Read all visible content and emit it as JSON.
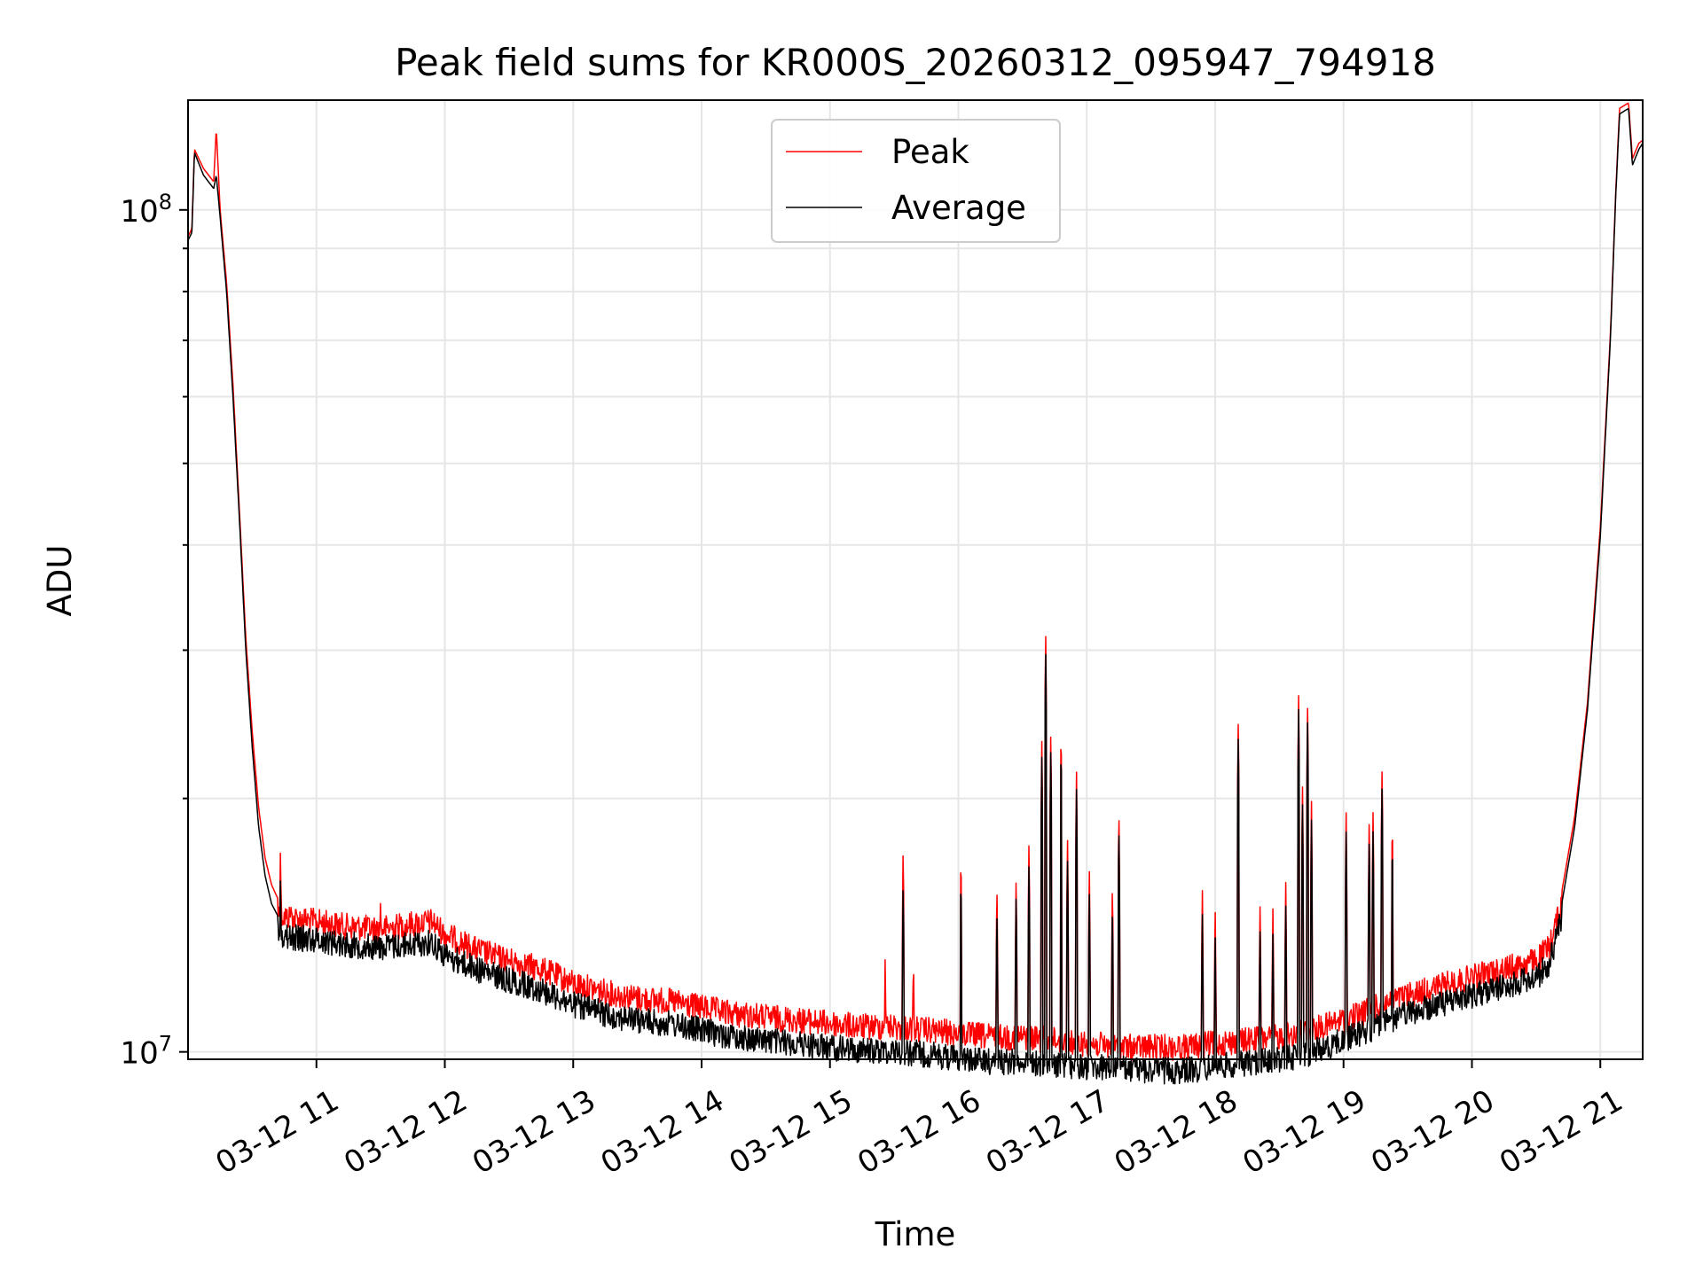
{
  "chart_data": {
    "type": "line",
    "title": "Peak field sums for KR000S_20260312_095947_794918",
    "xlabel": "Time",
    "ylabel": "ADU",
    "y_scale": "log",
    "ylim": [
      9800000,
      135000000
    ],
    "xlim_hours": [
      10.0,
      21.33
    ],
    "grid": "on (major and minor)",
    "legend_placement": "top-center",
    "x_ticks": [
      {
        "hour": 11,
        "label": "03-12 11"
      },
      {
        "hour": 12,
        "label": "03-12 12"
      },
      {
        "hour": 13,
        "label": "03-12 13"
      },
      {
        "hour": 14,
        "label": "03-12 14"
      },
      {
        "hour": 15,
        "label": "03-12 15"
      },
      {
        "hour": 16,
        "label": "03-12 16"
      },
      {
        "hour": 17,
        "label": "03-12 17"
      },
      {
        "hour": 18,
        "label": "03-12 18"
      },
      {
        "hour": 19,
        "label": "03-12 19"
      },
      {
        "hour": 20,
        "label": "03-12 20"
      },
      {
        "hour": 21,
        "label": "03-12 21"
      }
    ],
    "y_ticks": [
      {
        "value": 10000000,
        "base": "10",
        "exp": "7"
      },
      {
        "value": 100000000,
        "base": "10",
        "exp": "8"
      }
    ],
    "series": [
      {
        "name": "Peak",
        "color": "#ff0000",
        "points": [
          [
            10.0,
            93000000
          ],
          [
            10.03,
            95000000
          ],
          [
            10.05,
            118000000
          ],
          [
            10.12,
            112000000
          ],
          [
            10.2,
            108000000
          ],
          [
            10.22,
            125000000
          ],
          [
            10.25,
            100000000
          ],
          [
            10.3,
            82000000
          ],
          [
            10.35,
            62000000
          ],
          [
            10.4,
            44000000
          ],
          [
            10.45,
            31000000
          ],
          [
            10.5,
            24000000
          ],
          [
            10.55,
            19500000
          ],
          [
            10.6,
            17000000
          ],
          [
            10.65,
            15800000
          ],
          [
            10.7,
            15200000
          ],
          [
            10.75,
            15000000
          ],
          [
            11.0,
            14800000
          ],
          [
            11.25,
            14600000
          ],
          [
            11.5,
            14500000
          ],
          [
            11.75,
            14700000
          ],
          [
            11.9,
            14800000
          ],
          [
            12.0,
            14300000
          ],
          [
            12.25,
            13700000
          ],
          [
            12.5,
            13300000
          ],
          [
            12.75,
            13000000
          ],
          [
            13.0,
            12500000
          ],
          [
            13.25,
            12200000
          ],
          [
            13.5,
            12000000
          ],
          [
            13.75,
            11900000
          ],
          [
            14.0,
            11700000
          ],
          [
            14.25,
            11500000
          ],
          [
            14.5,
            11400000
          ],
          [
            14.75,
            11300000
          ],
          [
            15.0,
            11200000
          ],
          [
            15.25,
            11100000
          ],
          [
            15.5,
            11100000
          ],
          [
            16.0,
            10900000
          ],
          [
            16.25,
            10800000
          ],
          [
            16.5,
            10800000
          ],
          [
            16.75,
            10700000
          ],
          [
            17.0,
            10600000
          ],
          [
            17.25,
            10500000
          ],
          [
            17.5,
            10500000
          ],
          [
            17.75,
            10500000
          ],
          [
            18.0,
            10600000
          ],
          [
            18.25,
            10700000
          ],
          [
            18.5,
            10800000
          ],
          [
            18.75,
            11000000
          ],
          [
            19.0,
            11300000
          ],
          [
            19.25,
            11700000
          ],
          [
            19.5,
            12100000
          ],
          [
            19.75,
            12400000
          ],
          [
            20.0,
            12700000
          ],
          [
            20.25,
            13000000
          ],
          [
            20.5,
            13300000
          ],
          [
            20.6,
            13800000
          ],
          [
            20.7,
            15500000
          ],
          [
            20.8,
            19000000
          ],
          [
            20.9,
            26000000
          ],
          [
            21.0,
            42000000
          ],
          [
            21.08,
            72000000
          ],
          [
            21.12,
            105000000
          ],
          [
            21.15,
            132000000
          ],
          [
            21.22,
            134000000
          ],
          [
            21.25,
            115000000
          ],
          [
            21.3,
            120000000
          ],
          [
            21.33,
            121000000
          ]
        ],
        "spikes": [
          [
            10.72,
            17800000
          ],
          [
            10.8,
            15800000
          ],
          [
            11.5,
            15500000
          ],
          [
            15.43,
            13000000
          ],
          [
            15.57,
            17600000
          ],
          [
            15.65,
            13200000
          ],
          [
            16.02,
            17500000
          ],
          [
            16.3,
            16000000
          ],
          [
            16.45,
            16200000
          ],
          [
            16.55,
            17800000
          ],
          [
            16.65,
            23500000
          ],
          [
            16.68,
            31500000
          ],
          [
            16.72,
            24000000
          ],
          [
            16.8,
            24500000
          ],
          [
            16.85,
            18000000
          ],
          [
            16.92,
            21500000
          ],
          [
            17.02,
            16500000
          ],
          [
            17.2,
            16000000
          ],
          [
            17.25,
            19600000
          ],
          [
            17.9,
            15800000
          ],
          [
            18.0,
            15000000
          ],
          [
            18.18,
            25000000
          ],
          [
            18.35,
            15200000
          ],
          [
            18.45,
            15000000
          ],
          [
            18.55,
            16000000
          ],
          [
            18.65,
            26500000
          ],
          [
            18.68,
            21000000
          ],
          [
            18.72,
            25800000
          ],
          [
            18.75,
            20000000
          ],
          [
            19.02,
            19500000
          ],
          [
            19.2,
            19200000
          ],
          [
            19.23,
            19500000
          ],
          [
            19.3,
            22000000
          ],
          [
            19.38,
            19200000
          ]
        ]
      },
      {
        "name": "Average",
        "color": "#000000",
        "points": [
          [
            10.0,
            92000000
          ],
          [
            10.03,
            94000000
          ],
          [
            10.05,
            117000000
          ],
          [
            10.12,
            110000000
          ],
          [
            10.2,
            106000000
          ],
          [
            10.22,
            110000000
          ],
          [
            10.25,
            98000000
          ],
          [
            10.3,
            80000000
          ],
          [
            10.35,
            60000000
          ],
          [
            10.4,
            43000000
          ],
          [
            10.45,
            30000000
          ],
          [
            10.5,
            23000000
          ],
          [
            10.55,
            18500000
          ],
          [
            10.6,
            16200000
          ],
          [
            10.65,
            15000000
          ],
          [
            10.7,
            14500000
          ],
          [
            10.75,
            14200000
          ],
          [
            11.0,
            14100000
          ],
          [
            11.25,
            13900000
          ],
          [
            11.5,
            13800000
          ],
          [
            11.75,
            13900000
          ],
          [
            11.9,
            14000000
          ],
          [
            12.0,
            13500000
          ],
          [
            12.25,
            13000000
          ],
          [
            12.5,
            12600000
          ],
          [
            12.75,
            12300000
          ],
          [
            13.0,
            11800000
          ],
          [
            13.25,
            11500000
          ],
          [
            13.5,
            11300000
          ],
          [
            13.75,
            11200000
          ],
          [
            14.0,
            11000000
          ],
          [
            14.25,
            10800000
          ],
          [
            14.5,
            10700000
          ],
          [
            14.75,
            10600000
          ],
          [
            15.0,
            10500000
          ],
          [
            15.25,
            10400000
          ],
          [
            15.5,
            10400000
          ],
          [
            16.0,
            10200000
          ],
          [
            16.25,
            10100000
          ],
          [
            16.5,
            10100000
          ],
          [
            16.75,
            10000000
          ],
          [
            17.0,
            9950000
          ],
          [
            17.25,
            9900000
          ],
          [
            17.5,
            9850000
          ],
          [
            17.75,
            9850000
          ],
          [
            18.0,
            9950000
          ],
          [
            18.25,
            10050000
          ],
          [
            18.5,
            10150000
          ],
          [
            18.75,
            10350000
          ],
          [
            19.0,
            10700000
          ],
          [
            19.25,
            11100000
          ],
          [
            19.5,
            11500000
          ],
          [
            19.75,
            11800000
          ],
          [
            20.0,
            12100000
          ],
          [
            20.25,
            12400000
          ],
          [
            20.5,
            12700000
          ],
          [
            20.6,
            13200000
          ],
          [
            20.7,
            15000000
          ],
          [
            20.8,
            18500000
          ],
          [
            20.9,
            25500000
          ],
          [
            21.0,
            41000000
          ],
          [
            21.08,
            71000000
          ],
          [
            21.12,
            104000000
          ],
          [
            21.15,
            130000000
          ],
          [
            21.22,
            132000000
          ],
          [
            21.25,
            113000000
          ],
          [
            21.3,
            118000000
          ],
          [
            21.33,
            120000000
          ]
        ],
        "spikes": [
          [
            10.72,
            16500000
          ],
          [
            15.57,
            16000000
          ],
          [
            16.02,
            16500000
          ],
          [
            16.3,
            15000000
          ],
          [
            16.45,
            15500000
          ],
          [
            16.55,
            16800000
          ],
          [
            16.65,
            22500000
          ],
          [
            16.68,
            30000000
          ],
          [
            16.72,
            23000000
          ],
          [
            16.8,
            23500000
          ],
          [
            16.85,
            17000000
          ],
          [
            16.92,
            20500000
          ],
          [
            17.02,
            15500000
          ],
          [
            17.2,
            15000000
          ],
          [
            17.25,
            18800000
          ],
          [
            17.9,
            14800000
          ],
          [
            18.0,
            14000000
          ],
          [
            18.18,
            24000000
          ],
          [
            18.35,
            14200000
          ],
          [
            18.45,
            14000000
          ],
          [
            18.55,
            15000000
          ],
          [
            18.65,
            25500000
          ],
          [
            18.68,
            20000000
          ],
          [
            18.72,
            24800000
          ],
          [
            18.75,
            19000000
          ],
          [
            19.02,
            18500000
          ],
          [
            19.2,
            18200000
          ],
          [
            19.23,
            18500000
          ],
          [
            19.3,
            21000000
          ],
          [
            19.38,
            18200000
          ]
        ]
      }
    ]
  }
}
